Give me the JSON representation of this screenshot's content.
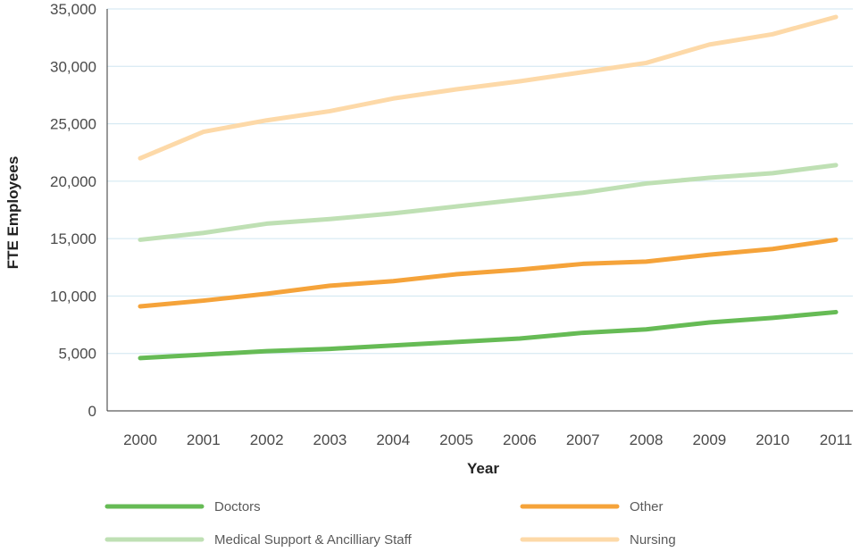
{
  "chart_data": {
    "type": "line",
    "title": "",
    "xlabel": "Year",
    "ylabel": "FTE Employees",
    "x": [
      "2000",
      "2001",
      "2002",
      "2003",
      "2004",
      "2005",
      "2006",
      "2007",
      "2008",
      "2009",
      "2010",
      "2011"
    ],
    "ylim": [
      0,
      35000
    ],
    "yticks": [
      0,
      5000,
      10000,
      15000,
      20000,
      25000,
      30000,
      35000
    ],
    "ytick_labels": [
      "0",
      "5,000",
      "10,000",
      "15,000",
      "20,000",
      "25,000",
      "30,000",
      "35,000"
    ],
    "grid": true,
    "legend_position": "bottom",
    "series": [
      {
        "name": "Doctors",
        "color": "#66bb55",
        "values": [
          4600,
          4900,
          5200,
          5400,
          5700,
          6000,
          6300,
          6800,
          7100,
          7700,
          8100,
          8600
        ]
      },
      {
        "name": "Other",
        "color": "#f5a33a",
        "values": [
          9100,
          9600,
          10200,
          10900,
          11300,
          11900,
          12300,
          12800,
          13000,
          13600,
          14100,
          14900
        ]
      },
      {
        "name": "Medical Support & Ancilliary Staff",
        "color": "#bfe0b4",
        "values": [
          14900,
          15500,
          16300,
          16700,
          17200,
          17800,
          18400,
          19000,
          19800,
          20300,
          20700,
          21400
        ]
      },
      {
        "name": "Nursing",
        "color": "#fdd9a8",
        "values": [
          22000,
          24300,
          25300,
          26100,
          27200,
          28000,
          28700,
          29500,
          30300,
          31900,
          32800,
          34300
        ]
      }
    ]
  }
}
